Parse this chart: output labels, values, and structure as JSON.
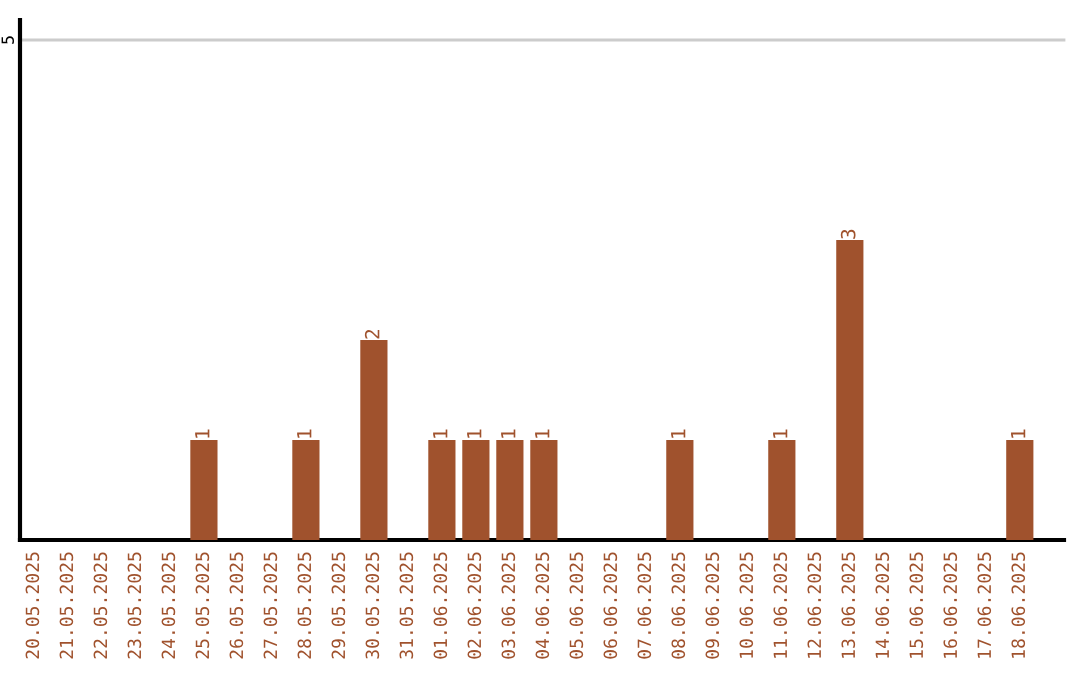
{
  "chart_data": {
    "type": "bar",
    "categories": [
      "20.05.2025",
      "21.05.2025",
      "22.05.2025",
      "23.05.2025",
      "24.05.2025",
      "25.05.2025",
      "26.05.2025",
      "27.05.2025",
      "28.05.2025",
      "29.05.2025",
      "30.05.2025",
      "31.05.2025",
      "01.06.2025",
      "02.06.2025",
      "03.06.2025",
      "04.06.2025",
      "05.06.2025",
      "06.06.2025",
      "07.06.2025",
      "08.06.2025",
      "09.06.2025",
      "10.06.2025",
      "11.06.2025",
      "12.06.2025",
      "13.06.2025",
      "14.06.2025",
      "15.06.2025",
      "16.06.2025",
      "17.06.2025",
      "18.06.2025"
    ],
    "values": [
      0,
      0,
      0,
      0,
      0,
      1,
      0,
      0,
      1,
      0,
      2,
      0,
      1,
      1,
      1,
      1,
      0,
      0,
      0,
      1,
      0,
      0,
      1,
      0,
      3,
      0,
      0,
      0,
      0,
      1
    ],
    "value_labels": [
      null,
      null,
      null,
      null,
      null,
      "1",
      null,
      null,
      "1",
      null,
      "2",
      null,
      "1",
      "1",
      "1",
      "1",
      null,
      null,
      null,
      "1",
      null,
      null,
      "1",
      null,
      "3",
      null,
      null,
      null,
      null,
      "1"
    ],
    "color": "#a0522d",
    "ylim": [
      0,
      5.2
    ],
    "yticks": [
      5
    ],
    "grid": "y"
  }
}
